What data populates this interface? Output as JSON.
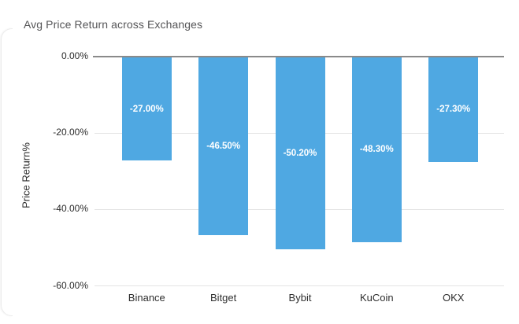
{
  "page": {
    "title": "Avg Price Return across Exchanges"
  },
  "chart_data": {
    "type": "bar",
    "title": "Avg Price Return across Exchanges",
    "xlabel": "",
    "ylabel": "Price Return%",
    "categories": [
      "Binance",
      "Bitget",
      "Bybit",
      "KuCoin",
      "OKX"
    ],
    "values": [
      -27.0,
      -46.5,
      -50.2,
      -48.3,
      -27.3
    ],
    "value_labels": [
      "-27.00%",
      "-46.50%",
      "-50.20%",
      "-48.30%",
      "-27.30%"
    ],
    "ylim": [
      -60,
      0
    ],
    "yticks": [
      0,
      -20,
      -40,
      -60
    ],
    "ytick_labels": [
      "0.00%",
      "-20.00%",
      "-40.00%",
      "-60.00%"
    ],
    "grid": true,
    "legend": false,
    "colors": {
      "bar": "#4FA8E2",
      "bar_label": "#FFFFFF",
      "zero_axis_line": "#8A8A8A",
      "gridline": "#E3E3E3",
      "title_text": "#555557",
      "tick_text": "#2B2B2B"
    }
  }
}
